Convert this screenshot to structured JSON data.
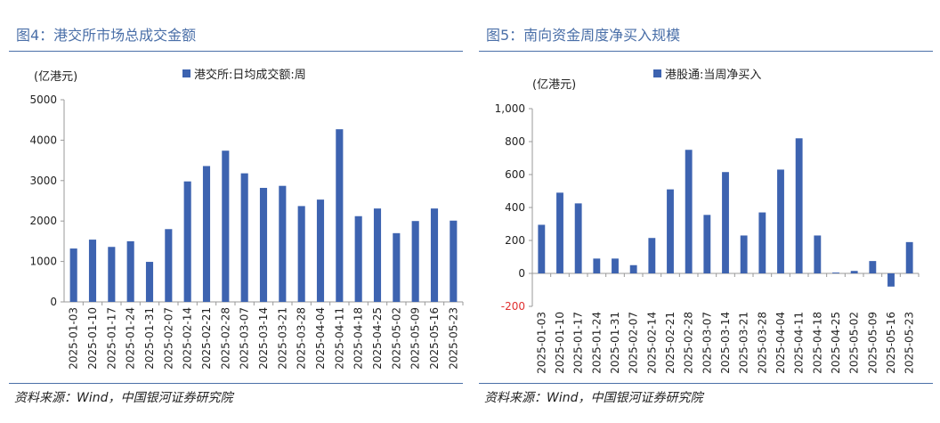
{
  "charts": [
    {
      "title": "图4：港交所市场总成交金额",
      "source": "资料来源：Wind，中国银河证券研究院",
      "chart_data": {
        "type": "bar",
        "unit_label": "(亿港元)",
        "categories": [
          "2025-01-03",
          "2025-01-10",
          "2025-01-17",
          "2025-01-24",
          "2025-01-31",
          "2025-02-07",
          "2025-02-14",
          "2025-02-21",
          "2025-02-28",
          "2025-03-07",
          "2025-03-14",
          "2025-03-21",
          "2025-03-28",
          "2025-04-04",
          "2025-04-11",
          "2025-04-18",
          "2025-04-25",
          "2025-05-02",
          "2025-05-09",
          "2025-05-16",
          "2025-05-23"
        ],
        "series": [
          {
            "name": "港交所:日均成交额:周",
            "color": "#3d63b0",
            "values": [
              1320,
              1540,
              1360,
              1500,
              990,
              1800,
              2980,
              3360,
              3740,
              3180,
              2820,
              2870,
              2370,
              2530,
              4270,
              2120,
              2310,
              1700,
              2000,
              2310,
              2010
            ]
          }
        ],
        "ylim": [
          0,
          5000
        ],
        "yticks": [
          "0",
          "1000",
          "2000",
          "3000",
          "4000",
          "5000"
        ],
        "legend_position": "top-center",
        "grid": false
      }
    },
    {
      "title": "图5：南向资金周度净买入规模",
      "source": "资料来源：Wind，中国银河证券研究院",
      "chart_data": {
        "type": "bar",
        "unit_label": "(亿港元)",
        "categories": [
          "2025-01-03",
          "2025-01-10",
          "2025-01-17",
          "2025-01-24",
          "2025-01-31",
          "2025-02-07",
          "2025-02-14",
          "2025-02-21",
          "2025-02-28",
          "2025-03-07",
          "2025-03-14",
          "2025-03-21",
          "2025-03-28",
          "2025-04-04",
          "2025-04-11",
          "2025-04-18",
          "2025-04-25",
          "2025-05-02",
          "2025-05-09",
          "2025-05-16",
          "2025-05-23"
        ],
        "series": [
          {
            "name": "港股通:当周净买入",
            "color": "#3d63b0",
            "values": [
              295,
              490,
              425,
              90,
              90,
              50,
              215,
              510,
              750,
              355,
              615,
              230,
              370,
              630,
              820,
              230,
              5,
              15,
              75,
              -80,
              190
            ]
          }
        ],
        "ylim": [
          -200,
          1000
        ],
        "yticks": [
          "-200",
          "0",
          "200",
          "400",
          "600",
          "800",
          "1,000"
        ],
        "negative_tick_color": "#e03030",
        "legend_position": "top-center",
        "grid": false
      }
    }
  ]
}
